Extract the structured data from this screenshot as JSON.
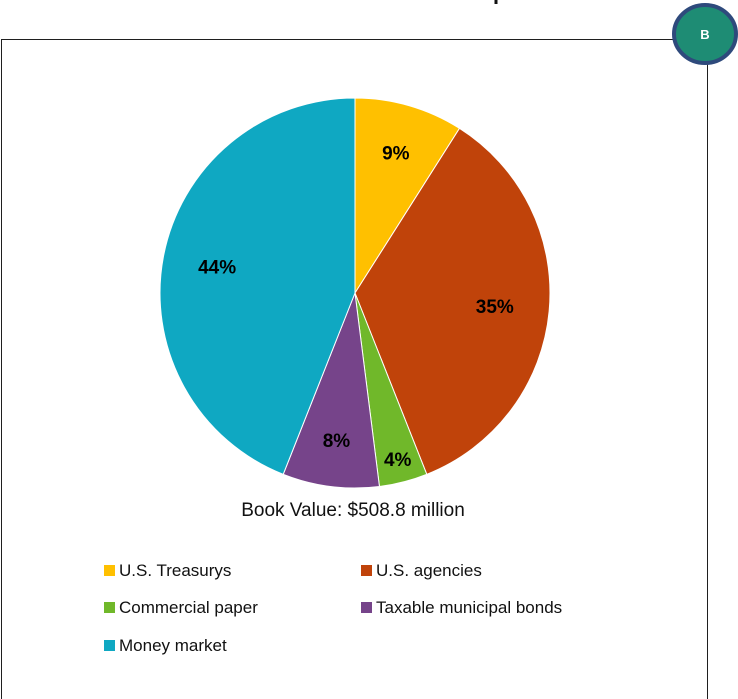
{
  "badge": {
    "label": "B",
    "fill": "#1e8c74",
    "border": "#2e4a7c"
  },
  "chart_data": {
    "type": "pie",
    "slices": [
      {
        "name": "U.S. Treasurys",
        "value": 9,
        "label": "9%",
        "color": "#ffc000"
      },
      {
        "name": "U.S. agencies",
        "value": 35,
        "label": "35%",
        "color": "#c0430a"
      },
      {
        "name": "Commercial paper",
        "value": 4,
        "label": "4%",
        "color": "#70b82a"
      },
      {
        "name": "Taxable municipal bonds",
        "value": 8,
        "label": "8%",
        "color": "#76448a"
      },
      {
        "name": "Money market",
        "value": 44,
        "label": "44%",
        "color": "#0fa8c2"
      }
    ],
    "caption": "Book Value: $508.8 million",
    "legend_position": "bottom"
  }
}
